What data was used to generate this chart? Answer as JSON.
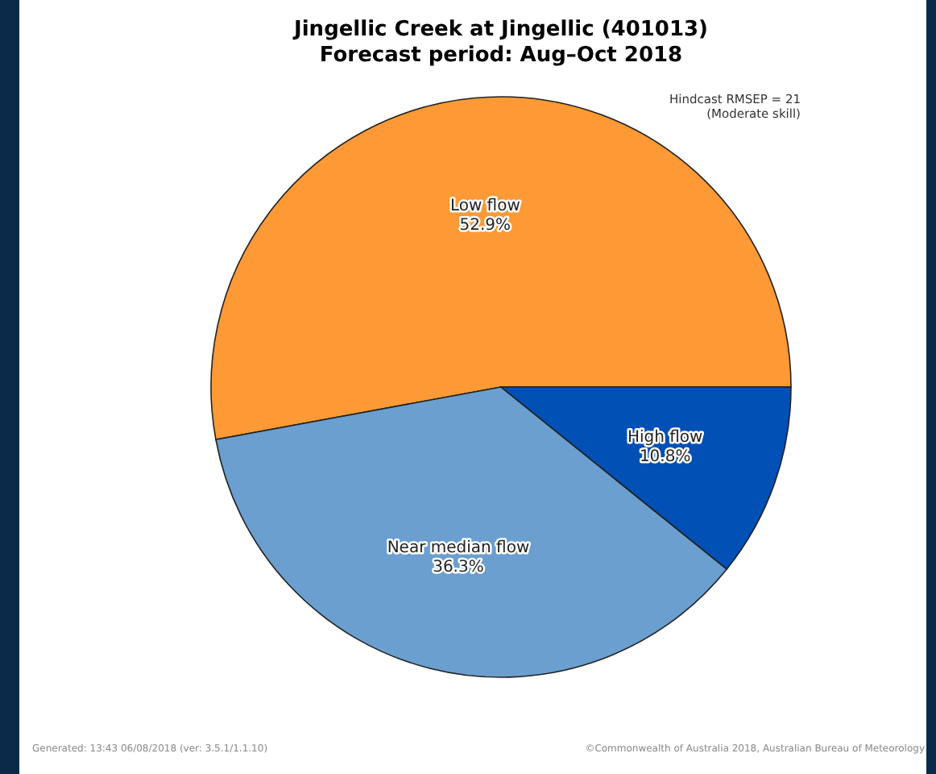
{
  "chart_data": {
    "type": "pie",
    "title": "Jingellic Creek at Jingellic (401013)",
    "subtitle": "Forecast period: Aug–Oct 2018",
    "categories": [
      "Low flow",
      "Near median flow",
      "High flow"
    ],
    "values": [
      52.9,
      36.3,
      10.8
    ],
    "colors": [
      "#fd9a35",
      "#6a9fcf",
      "#0050b5"
    ],
    "value_labels": [
      "52.9%",
      "36.3%",
      "10.8%"
    ],
    "annotations": [
      "Hindcast RMSEP = 21\n(Moderate skill)",
      "Generated: 13:43 06/08/2018 (ver: 3.5.1/1.1.10)",
      "©Commonwealth of Australia 2018, Australian Bureau of Meteorology"
    ]
  }
}
